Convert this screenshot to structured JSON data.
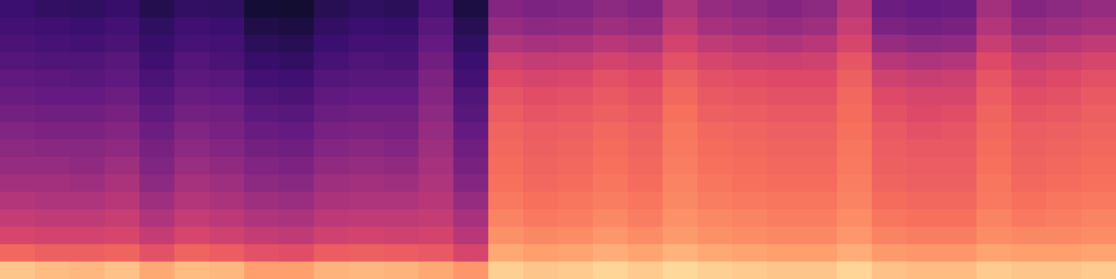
{
  "chart_data": {
    "type": "heatmap",
    "color": "magma",
    "tick_labels": false,
    "zlim": [
      0,
      100
    ],
    "cells": [
      [
        20,
        18,
        17,
        19,
        14,
        18,
        17,
        10,
        9,
        15,
        17,
        16,
        24,
        12,
        38,
        36,
        37,
        40,
        38,
        48,
        42,
        40,
        38,
        40,
        50,
        32,
        30,
        31,
        45,
        38,
        40,
        42
      ],
      [
        22,
        21,
        20,
        22,
        17,
        21,
        20,
        13,
        12,
        18,
        20,
        19,
        27,
        15,
        42,
        40,
        41,
        44,
        42,
        52,
        46,
        44,
        42,
        44,
        54,
        36,
        34,
        35,
        49,
        42,
        44,
        46
      ],
      [
        24,
        23,
        22,
        24,
        19,
        23,
        22,
        16,
        15,
        20,
        22,
        22,
        30,
        17,
        48,
        46,
        47,
        50,
        48,
        57,
        52,
        50,
        48,
        50,
        58,
        42,
        40,
        41,
        54,
        48,
        50,
        52
      ],
      [
        26,
        25,
        25,
        27,
        21,
        26,
        24,
        19,
        18,
        23,
        25,
        24,
        33,
        20,
        55,
        53,
        54,
        57,
        55,
        62,
        58,
        56,
        55,
        56,
        63,
        50,
        48,
        49,
        60,
        54,
        56,
        58
      ],
      [
        29,
        28,
        27,
        29,
        24,
        28,
        27,
        22,
        21,
        26,
        27,
        27,
        36,
        22,
        60,
        58,
        59,
        62,
        60,
        66,
        62,
        61,
        60,
        60,
        66,
        56,
        54,
        55,
        63,
        58,
        60,
        62
      ],
      [
        31,
        30,
        30,
        32,
        26,
        31,
        30,
        25,
        24,
        29,
        30,
        30,
        38,
        25,
        63,
        61,
        62,
        64,
        62,
        68,
        64,
        63,
        62,
        62,
        68,
        60,
        58,
        58,
        65,
        61,
        62,
        64
      ],
      [
        34,
        33,
        33,
        35,
        29,
        34,
        33,
        28,
        27,
        32,
        33,
        33,
        40,
        27,
        65,
        63,
        64,
        66,
        64,
        70,
        66,
        65,
        64,
        64,
        69,
        62,
        60,
        61,
        67,
        63,
        64,
        66
      ],
      [
        37,
        36,
        36,
        38,
        32,
        37,
        35,
        31,
        30,
        35,
        36,
        35,
        42,
        30,
        67,
        65,
        66,
        68,
        66,
        71,
        68,
        67,
        66,
        66,
        70,
        64,
        62,
        63,
        68,
        65,
        66,
        67
      ],
      [
        40,
        39,
        39,
        41,
        35,
        40,
        38,
        34,
        33,
        38,
        39,
        38,
        44,
        33,
        68,
        66,
        67,
        69,
        67,
        72,
        69,
        68,
        67,
        67,
        71,
        65,
        64,
        64,
        69,
        66,
        67,
        68
      ],
      [
        42,
        42,
        41,
        44,
        37,
        43,
        41,
        37,
        36,
        41,
        42,
        41,
        46,
        35,
        69,
        67,
        68,
        70,
        68,
        73,
        70,
        69,
        68,
        68,
        72,
        66,
        65,
        65,
        70,
        67,
        68,
        69
      ],
      [
        45,
        45,
        44,
        47,
        40,
        46,
        44,
        40,
        39,
        44,
        45,
        44,
        48,
        38,
        70,
        68,
        69,
        71,
        69,
        74,
        71,
        70,
        69,
        69,
        73,
        67,
        66,
        66,
        71,
        68,
        69,
        70
      ],
      [
        49,
        48,
        48,
        50,
        44,
        49,
        47,
        44,
        43,
        47,
        48,
        48,
        50,
        42,
        72,
        70,
        71,
        73,
        71,
        75,
        73,
        72,
        71,
        71,
        74,
        69,
        68,
        68,
        72,
        70,
        71,
        72
      ],
      [
        53,
        52,
        52,
        54,
        48,
        53,
        51,
        48,
        47,
        51,
        52,
        52,
        53,
        46,
        74,
        72,
        73,
        75,
        73,
        77,
        75,
        74,
        73,
        73,
        76,
        71,
        70,
        70,
        74,
        72,
        73,
        74
      ],
      [
        58,
        57,
        57,
        58,
        53,
        58,
        56,
        53,
        52,
        56,
        57,
        56,
        57,
        50,
        77,
        75,
        76,
        78,
        76,
        79,
        77,
        76,
        75,
        75,
        78,
        74,
        73,
        73,
        76,
        75,
        75,
        76
      ],
      [
        68,
        66,
        66,
        67,
        62,
        67,
        65,
        62,
        61,
        65,
        66,
        65,
        64,
        58,
        82,
        80,
        81,
        83,
        81,
        84,
        82,
        81,
        80,
        80,
        83,
        79,
        78,
        78,
        81,
        80,
        80,
        81
      ],
      [
        88,
        86,
        85,
        87,
        82,
        86,
        85,
        80,
        80,
        84,
        85,
        84,
        82,
        78,
        90,
        88,
        89,
        91,
        89,
        92,
        90,
        89,
        88,
        88,
        91,
        87,
        86,
        86,
        89,
        88,
        88,
        89
      ]
    ]
  }
}
